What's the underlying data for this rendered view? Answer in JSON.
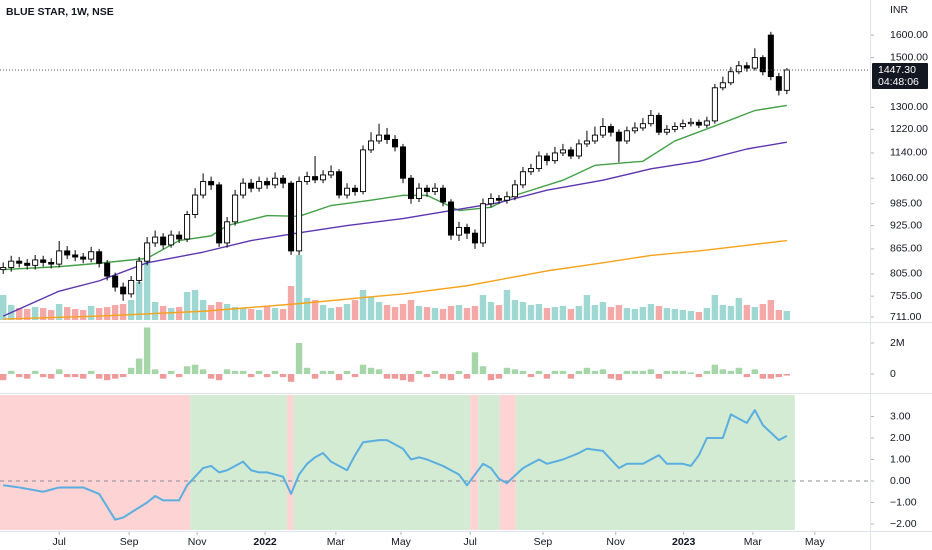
{
  "chart_data": [
    {
      "type": "candlestick",
      "title": "BLUE STAR, 1W, NSE",
      "currency": "INR",
      "log": true,
      "ylim": [
        705,
        1770
      ],
      "xlim": [
        -0.4,
        108.4
      ],
      "yticks": [
        {
          "value": 1600,
          "label": "1600.00"
        },
        {
          "value": 1500,
          "label": "1500.00"
        },
        {
          "value": 1300,
          "label": "1300.00"
        },
        {
          "value": 1220,
          "label": "1220.00"
        },
        {
          "value": 1140,
          "label": "1140.00"
        },
        {
          "value": 1060,
          "label": "1060.00"
        },
        {
          "value": 985,
          "label": "985.00"
        },
        {
          "value": 925,
          "label": "925.00"
        },
        {
          "value": 865,
          "label": "865.00"
        },
        {
          "value": 805,
          "label": "805.00"
        },
        {
          "value": 755,
          "label": "755.00"
        },
        {
          "value": 711,
          "label": "711.00"
        }
      ],
      "last_price": {
        "value": 1447.3,
        "label": "1447.30"
      },
      "countdown": "04:48:06",
      "up_color": "#ffffff",
      "down_color": "#000000",
      "volume_up_color": "#9fd8d2",
      "volume_down_color": "#f5a8a8",
      "volume_lim": [
        0,
        3200
      ],
      "open": [
        815,
        820,
        835,
        830,
        825,
        838,
        832,
        828,
        860,
        850,
        845,
        840,
        858,
        830,
        800,
        775,
        760,
        790,
        835,
        880,
        895,
        875,
        900,
        890,
        955,
        1010,
        1050,
        1040,
        880,
        935,
        1010,
        1045,
        1030,
        1050,
        1040,
        1060,
        1045,
        860,
        1050,
        1065,
        1055,
        1070,
        1080,
        1010,
        1030,
        1020,
        1150,
        1180,
        1200,
        1185,
        1160,
        1060,
        1000,
        1030,
        1020,
        1030,
        990,
        900,
        920,
        905,
        880,
        985,
        1000,
        995,
        1005,
        1040,
        1080,
        1090,
        1130,
        1115,
        1140,
        1150,
        1130,
        1170,
        1180,
        1200,
        1230,
        1210,
        1180,
        1215,
        1225,
        1240,
        1270,
        1210,
        1220,
        1230,
        1240,
        1245,
        1235,
        1250,
        1375,
        1395,
        1440,
        1465,
        1455,
        1500,
        1600,
        1420,
        1365
      ],
      "high": [
        832,
        848,
        845,
        840,
        850,
        848,
        842,
        885,
        872,
        862,
        855,
        870,
        865,
        838,
        808,
        785,
        800,
        845,
        895,
        912,
        905,
        912,
        910,
        965,
        1030,
        1075,
        1065,
        1048,
        948,
        1025,
        1060,
        1058,
        1065,
        1062,
        1078,
        1070,
        1052,
        1065,
        1080,
        1130,
        1085,
        1100,
        1088,
        1045,
        1040,
        1165,
        1210,
        1240,
        1225,
        1200,
        1170,
        1070,
        1045,
        1040,
        1045,
        1040,
        998,
        935,
        930,
        915,
        1000,
        1015,
        1010,
        1020,
        1055,
        1095,
        1105,
        1145,
        1140,
        1160,
        1170,
        1160,
        1185,
        1215,
        1230,
        1260,
        1240,
        1220,
        1230,
        1245,
        1260,
        1290,
        1280,
        1235,
        1245,
        1255,
        1260,
        1255,
        1265,
        1390,
        1420,
        1460,
        1485,
        1480,
        1540,
        1510,
        1615,
        1435,
        1455
      ],
      "low": [
        805,
        810,
        820,
        815,
        815,
        822,
        818,
        820,
        840,
        835,
        830,
        832,
        820,
        790,
        765,
        745,
        752,
        782,
        825,
        870,
        865,
        868,
        880,
        882,
        945,
        1000,
        1025,
        870,
        868,
        925,
        1000,
        1018,
        1020,
        1028,
        1030,
        1030,
        850,
        850,
        1040,
        1045,
        1045,
        1060,
        1000,
        1000,
        1008,
        1012,
        1140,
        1170,
        1170,
        1145,
        1045,
        985,
        990,
        1005,
        1010,
        978,
        888,
        885,
        890,
        865,
        870,
        975,
        985,
        985,
        995,
        1030,
        1070,
        1080,
        1100,
        1105,
        1130,
        1120,
        1120,
        1160,
        1170,
        1190,
        1195,
        1110,
        1170,
        1205,
        1215,
        1230,
        1200,
        1200,
        1210,
        1220,
        1230,
        1225,
        1225,
        1240,
        1365,
        1385,
        1430,
        1440,
        1445,
        1425,
        1405,
        1345,
        1350
      ],
      "close": [
        820,
        835,
        830,
        825,
        838,
        832,
        828,
        860,
        850,
        845,
        840,
        858,
        830,
        800,
        775,
        760,
        790,
        835,
        880,
        895,
        875,
        900,
        890,
        955,
        1010,
        1050,
        1040,
        880,
        935,
        1010,
        1045,
        1030,
        1050,
        1040,
        1060,
        1045,
        860,
        1050,
        1065,
        1055,
        1070,
        1080,
        1010,
        1030,
        1020,
        1150,
        1180,
        1200,
        1185,
        1160,
        1060,
        1000,
        1030,
        1020,
        1030,
        990,
        900,
        920,
        905,
        880,
        985,
        1000,
        995,
        1005,
        1040,
        1080,
        1090,
        1130,
        1115,
        1140,
        1150,
        1130,
        1170,
        1180,
        1200,
        1230,
        1210,
        1180,
        1215,
        1225,
        1240,
        1270,
        1210,
        1220,
        1230,
        1240,
        1245,
        1235,
        1250,
        1375,
        1395,
        1440,
        1465,
        1455,
        1500,
        1440,
        1420,
        1365,
        1447.3
      ],
      "volume": [
        250,
        150,
        120,
        110,
        130,
        120,
        100,
        160,
        130,
        110,
        100,
        140,
        120,
        130,
        150,
        160,
        200,
        380,
        700,
        180,
        140,
        120,
        130,
        280,
        300,
        200,
        150,
        180,
        160,
        130,
        120,
        110,
        100,
        140,
        120,
        110,
        340,
        650,
        220,
        200,
        150,
        120,
        130,
        160,
        200,
        300,
        230,
        180,
        150,
        130,
        160,
        200,
        140,
        130,
        120,
        110,
        140,
        150,
        120,
        140,
        250,
        180,
        150,
        300,
        200,
        180,
        150,
        160,
        120,
        130,
        140,
        110,
        140,
        250,
        150,
        180,
        130,
        150,
        120,
        110,
        130,
        160,
        140,
        120,
        110,
        100,
        90,
        80,
        120,
        250,
        150,
        140,
        220,
        150,
        130,
        160,
        200,
        100,
        90
      ],
      "moving_averages": [
        {
          "color": "#43a047",
          "x": [
            0,
            7,
            12,
            18,
            22,
            26,
            28,
            33,
            37,
            41,
            46,
            50,
            53,
            57,
            61,
            64,
            70,
            74,
            80,
            84,
            89,
            94,
            98
          ],
          "values": [
            815,
            822,
            830,
            842,
            886,
            898,
            925,
            952,
            950,
            980,
            995,
            1009,
            1009,
            966,
            975,
            1009,
            1054,
            1100,
            1113,
            1180,
            1232,
            1288,
            1307
          ]
        },
        {
          "color": "#5e35b1",
          "x": [
            0,
            7,
            12,
            18,
            25,
            31,
            37,
            43,
            50,
            56,
            62,
            68,
            75,
            81,
            87,
            93,
            98
          ],
          "values": [
            713,
            766,
            789,
            831,
            857,
            886,
            906,
            925,
            944,
            966,
            988,
            1024,
            1054,
            1089,
            1113,
            1153,
            1176
          ]
        },
        {
          "color": "#f7a21b",
          "x": [
            0,
            12,
            25,
            37,
            50,
            58,
            68,
            75,
            81,
            87,
            93,
            98
          ],
          "values": [
            707,
            713,
            723,
            739,
            760,
            778,
            812,
            831,
            849,
            860,
            874,
            886
          ]
        }
      ]
    },
    {
      "type": "bar",
      "ylim": [
        -1.16,
        3.16
      ],
      "xlim": [
        -0.4,
        108.4
      ],
      "yticks": [
        {
          "value": 2,
          "label": "2M"
        },
        0
      ],
      "positive_color": "#a5d6a7",
      "negative_color": "#ef9a9a",
      "values": [
        -0.4,
        0.2,
        -0.2,
        -0.3,
        0.2,
        -0.2,
        -0.3,
        0.3,
        -0.2,
        -0.2,
        -0.3,
        0.2,
        -0.3,
        -0.4,
        -0.3,
        -0.2,
        0.4,
        1.0,
        3.0,
        0.3,
        -0.3,
        0.2,
        -0.2,
        0.5,
        0.6,
        0.3,
        -0.3,
        -0.4,
        0.3,
        0.2,
        0.2,
        -0.2,
        0.2,
        -0.2,
        0.2,
        -0.2,
        -0.5,
        2.0,
        0.4,
        -0.3,
        0.2,
        0.2,
        -0.4,
        0.2,
        -0.2,
        0.6,
        0.4,
        0.3,
        -0.3,
        -0.3,
        -0.4,
        -0.5,
        0.2,
        -0.2,
        0.2,
        -0.3,
        -0.4,
        0.2,
        -0.3,
        1.4,
        0.5,
        -0.4,
        -0.3,
        0.4,
        0.3,
        0.2,
        -0.2,
        0.2,
        -0.3,
        0.2,
        0.2,
        -0.3,
        0.2,
        0.4,
        0.2,
        0.3,
        -0.3,
        -0.4,
        0.2,
        0.2,
        0.2,
        0.3,
        -0.3,
        0.2,
        0.2,
        0.2,
        0.1,
        -0.2,
        0.2,
        0.6,
        0.3,
        0.2,
        0.4,
        -0.2,
        0.3,
        -0.3,
        -0.3,
        -0.2,
        -0.1
      ]
    },
    {
      "type": "line",
      "ylim": [
        -2.28,
        4.0
      ],
      "xlim": [
        -0.4,
        108.4
      ],
      "color": "#5aaee0",
      "zero_line": true,
      "yticks": [
        {
          "value": 3,
          "label": "3.00"
        },
        {
          "value": 2,
          "label": "2.00"
        },
        {
          "value": 1,
          "label": "1.00"
        },
        {
          "value": 0,
          "label": "0.00"
        },
        {
          "value": -1,
          "label": "−1.00"
        },
        {
          "value": -2,
          "label": "−2.00"
        }
      ],
      "bands": [
        {
          "start": -0.4,
          "end": 23.4,
          "color": "#fdd3d3"
        },
        {
          "start": 23.4,
          "end": 35.5,
          "color": "#d3ebd3"
        },
        {
          "start": 35.5,
          "end": 36.3,
          "color": "#fdd3d3"
        },
        {
          "start": 36.3,
          "end": 58.4,
          "color": "#d3ebd3"
        },
        {
          "start": 58.4,
          "end": 59.4,
          "color": "#fdd3d3"
        },
        {
          "start": 59.4,
          "end": 62.1,
          "color": "#d3ebd3"
        },
        {
          "start": 62.1,
          "end": 64.1,
          "color": "#fdd3d3"
        },
        {
          "start": 64.1,
          "end": 99,
          "color": "#d3ebd3"
        }
      ],
      "x": [
        0,
        2,
        5,
        7,
        10,
        12,
        14,
        15,
        18,
        19,
        20,
        22,
        23,
        25,
        26,
        27,
        28,
        30,
        31,
        32,
        33,
        35,
        36,
        37,
        38,
        39,
        40,
        41,
        43,
        44,
        45,
        47,
        48,
        50,
        51,
        52,
        53,
        55,
        56,
        57,
        58,
        60,
        61,
        62,
        63,
        65,
        66,
        67,
        68,
        70,
        72,
        73,
        75,
        77,
        78,
        80,
        82,
        83,
        85,
        86,
        87,
        88,
        90,
        91,
        93,
        94,
        95,
        97,
        98
      ],
      "values": [
        -0.2,
        -0.3,
        -0.5,
        -0.3,
        -0.3,
        -0.6,
        -1.8,
        -1.7,
        -1.0,
        -0.7,
        -0.9,
        -0.9,
        -0.2,
        0.6,
        0.7,
        0.4,
        0.5,
        0.9,
        0.5,
        0.4,
        0.4,
        0.2,
        -0.6,
        0.3,
        0.8,
        1.1,
        1.3,
        0.9,
        0.5,
        1.2,
        1.8,
        1.9,
        1.9,
        1.5,
        1.0,
        1.1,
        1.0,
        0.7,
        0.5,
        0.3,
        -0.2,
        0.8,
        0.6,
        0.1,
        -0.1,
        0.6,
        0.8,
        1.0,
        0.8,
        1.0,
        1.3,
        1.5,
        1.4,
        0.6,
        0.8,
        0.8,
        1.2,
        0.8,
        0.8,
        0.7,
        1.2,
        2.0,
        2.0,
        3.1,
        2.7,
        3.3,
        2.6,
        1.9,
        2.1
      ],
      "xticks": [
        {
          "value": 7,
          "label": "Jul"
        },
        {
          "value": 15.75,
          "label": "Sep"
        },
        {
          "value": 24.25,
          "label": "Nov"
        },
        {
          "value": 32.75,
          "label": "2022"
        },
        {
          "value": 41.6,
          "label": "Mar"
        },
        {
          "value": 49.75,
          "label": "May"
        },
        {
          "value": 58.4,
          "label": "Jul"
        },
        {
          "value": 67.5,
          "label": "Sep"
        },
        {
          "value": 76.6,
          "label": "Nov"
        },
        {
          "value": 85.1,
          "label": "2023"
        },
        {
          "value": 93.75,
          "label": "Mar"
        },
        {
          "value": 101.5,
          "label": "May"
        }
      ]
    }
  ]
}
